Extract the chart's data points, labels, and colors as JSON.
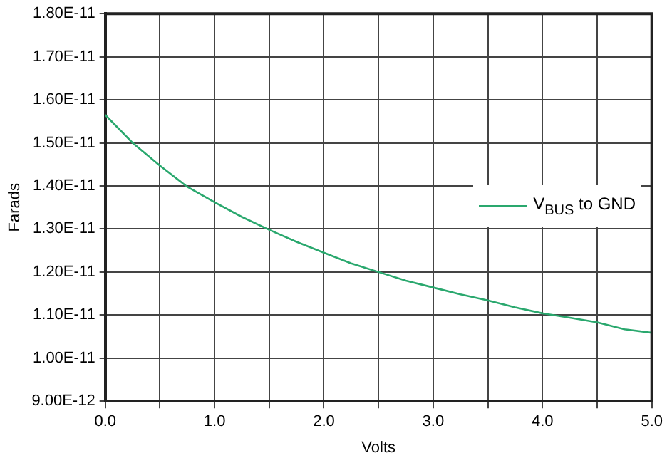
{
  "chart_data": {
    "type": "line",
    "xlabel": "Volts",
    "ylabel": "Farads",
    "x": [
      0,
      0.25,
      0.5,
      0.75,
      1,
      1.25,
      1.5,
      1.75,
      2,
      2.25,
      2.5,
      2.75,
      3,
      3.25,
      3.5,
      3.75,
      4,
      4.25,
      4.5,
      4.75,
      5
    ],
    "series": [
      {
        "name": "V$_{BUS}$ to GND",
        "color": "#2aa86e",
        "values": [
          1.565e-11,
          1.5e-11,
          1.447e-11,
          1.398e-11,
          1.362e-11,
          1.328e-11,
          1.298e-11,
          1.27e-11,
          1.245e-11,
          1.22e-11,
          1.2e-11,
          1.18e-11,
          1.164e-11,
          1.148e-11,
          1.134e-11,
          1.118e-11,
          1.104e-11,
          1.094e-11,
          1.083e-11,
          1.067e-11,
          1.059e-11
        ]
      }
    ],
    "xlim": [
      0,
      5
    ],
    "xticks": [
      {
        "value": 0,
        "label": "0.0"
      },
      {
        "value": 0.5,
        "label": null
      },
      {
        "value": 1,
        "label": "1.0"
      },
      {
        "value": 1.5,
        "label": null
      },
      {
        "value": 2,
        "label": "2.0"
      },
      {
        "value": 2.5,
        "label": null
      },
      {
        "value": 3,
        "label": "3.0"
      },
      {
        "value": 3.5,
        "label": null
      },
      {
        "value": 4,
        "label": "4.0"
      },
      {
        "value": 4.5,
        "label": null
      },
      {
        "value": 5,
        "label": "5.0"
      }
    ],
    "ylim": [
      9e-12,
      1.8e-11
    ],
    "yticks": [
      {
        "value": 9e-12,
        "label": "9.00E-12"
      },
      {
        "value": 1e-11,
        "label": "1.00E-11"
      },
      {
        "value": 1.1e-11,
        "label": "1.10E-11"
      },
      {
        "value": 1.2e-11,
        "label": "1.20E-11"
      },
      {
        "value": 1.3e-11,
        "label": "1.30E-11"
      },
      {
        "value": 1.4e-11,
        "label": "1.40E-11"
      },
      {
        "value": 1.5e-11,
        "label": "1.50E-11"
      },
      {
        "value": 1.6e-11,
        "label": "1.60E-11"
      },
      {
        "value": 1.7e-11,
        "label": "1.70E-11"
      },
      {
        "value": 1.8e-11,
        "label": "1.80E-11"
      }
    ],
    "grid": true,
    "legend": "right",
    "marker": "none",
    "line_style": "solid"
  }
}
